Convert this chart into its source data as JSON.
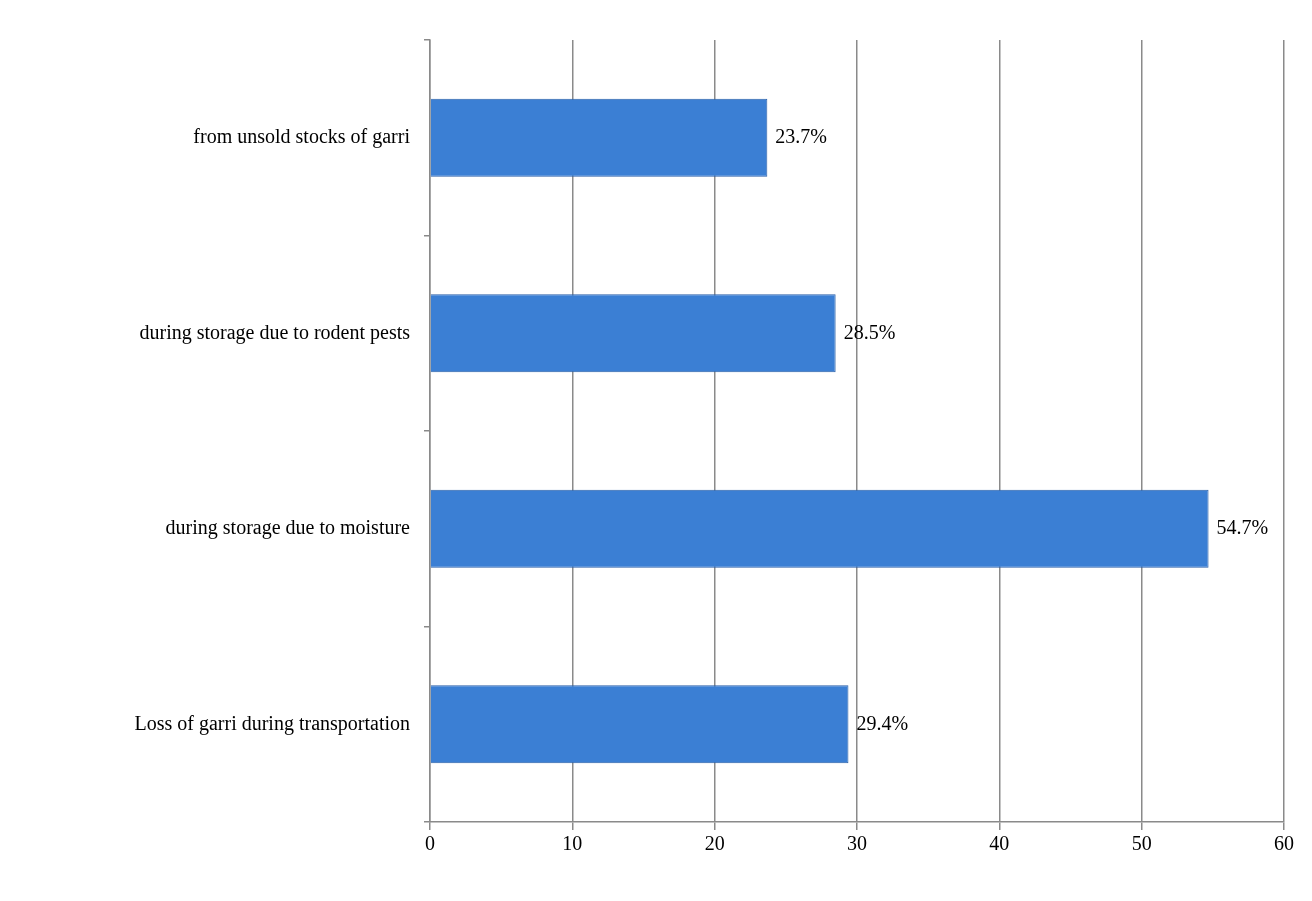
{
  "chart_data": {
    "type": "bar",
    "orientation": "horizontal",
    "categories": [
      "from unsold stocks of garri",
      "during storage due to rodent pests",
      "during storage due to moisture",
      "Loss of garri during transportation"
    ],
    "values": [
      23.7,
      28.5,
      54.7,
      29.4
    ],
    "value_labels": [
      "23.7%",
      "28.5%",
      "54.7%",
      "29.4%"
    ],
    "color": "#3b7fd4",
    "xlim": [
      0,
      60
    ],
    "xticks": [
      0,
      10,
      20,
      30,
      40,
      50,
      60
    ],
    "grid": "x",
    "legend": false
  }
}
